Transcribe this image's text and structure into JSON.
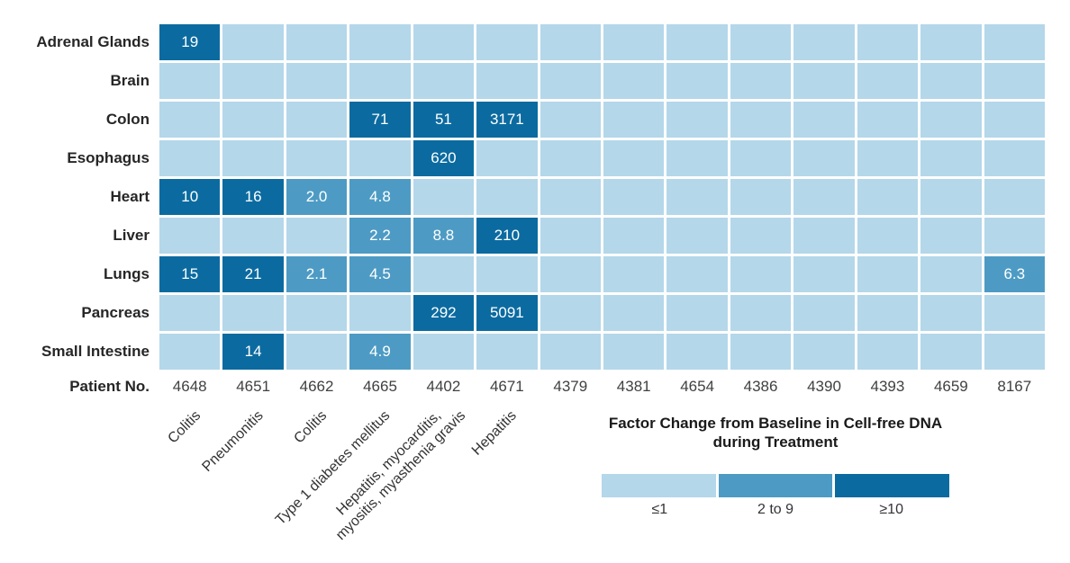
{
  "chart_data": {
    "type": "heatmap",
    "title": "Factor Change from Baseline in Cell-free DNA during Treatment",
    "rows": [
      "Adrenal Glands",
      "Brain",
      "Colon",
      "Esophagus",
      "Heart",
      "Liver",
      "Lungs",
      "Pancreas",
      "Small Intestine"
    ],
    "column_axis_label": "Patient No.",
    "columns": [
      "4648",
      "4651",
      "4662",
      "4665",
      "4402",
      "4671",
      "4379",
      "4381",
      "4654",
      "4386",
      "4390",
      "4393",
      "4659",
      "8167"
    ],
    "diagnoses": [
      {
        "patient": "4648",
        "lines": [
          "Colitis"
        ]
      },
      {
        "patient": "4651",
        "lines": [
          "Pneumonitis"
        ]
      },
      {
        "patient": "4662",
        "lines": [
          "Colitis"
        ]
      },
      {
        "patient": "4665",
        "lines": [
          "Type 1 diabetes mellitus"
        ]
      },
      {
        "patient": "4402",
        "lines": [
          "Hepatitis, myocarditis,",
          "myositis, myasthenia gravis"
        ]
      },
      {
        "patient": "4671",
        "lines": [
          "Hepatitis"
        ]
      }
    ],
    "default_bin": "le1",
    "cells": [
      {
        "row": "Adrenal Glands",
        "patient": "4648",
        "value": "19",
        "bin": "ge10"
      },
      {
        "row": "Colon",
        "patient": "4665",
        "value": "71",
        "bin": "ge10"
      },
      {
        "row": "Colon",
        "patient": "4402",
        "value": "51",
        "bin": "ge10"
      },
      {
        "row": "Colon",
        "patient": "4671",
        "value": "3171",
        "bin": "ge10"
      },
      {
        "row": "Esophagus",
        "patient": "4402",
        "value": "620",
        "bin": "ge10"
      },
      {
        "row": "Heart",
        "patient": "4648",
        "value": "10",
        "bin": "ge10"
      },
      {
        "row": "Heart",
        "patient": "4651",
        "value": "16",
        "bin": "ge10"
      },
      {
        "row": "Heart",
        "patient": "4662",
        "value": "2.0",
        "bin": "2to9"
      },
      {
        "row": "Heart",
        "patient": "4665",
        "value": "4.8",
        "bin": "2to9"
      },
      {
        "row": "Liver",
        "patient": "4665",
        "value": "2.2",
        "bin": "2to9"
      },
      {
        "row": "Liver",
        "patient": "4402",
        "value": "8.8",
        "bin": "2to9"
      },
      {
        "row": "Liver",
        "patient": "4671",
        "value": "210",
        "bin": "ge10"
      },
      {
        "row": "Lungs",
        "patient": "4648",
        "value": "15",
        "bin": "ge10"
      },
      {
        "row": "Lungs",
        "patient": "4651",
        "value": "21",
        "bin": "ge10"
      },
      {
        "row": "Lungs",
        "patient": "4662",
        "value": "2.1",
        "bin": "2to9"
      },
      {
        "row": "Lungs",
        "patient": "4665",
        "value": "4.5",
        "bin": "2to9"
      },
      {
        "row": "Lungs",
        "patient": "8167",
        "value": "6.3",
        "bin": "2to9"
      },
      {
        "row": "Pancreas",
        "patient": "4402",
        "value": "292",
        "bin": "ge10"
      },
      {
        "row": "Pancreas",
        "patient": "4671",
        "value": "5091",
        "bin": "ge10"
      },
      {
        "row": "Small Intestine",
        "patient": "4651",
        "value": "14",
        "bin": "ge10"
      },
      {
        "row": "Small Intestine",
        "patient": "4665",
        "value": "4.9",
        "bin": "2to9"
      }
    ],
    "legend": {
      "title_line1": "Factor Change from Baseline in Cell-free DNA",
      "title_line2": "during Treatment",
      "bins": [
        {
          "key": "le1",
          "label": "≤1",
          "color": "#b4d7ea"
        },
        {
          "key": "2to9",
          "label": "2 to 9",
          "color": "#4d9bc4"
        },
        {
          "key": "ge10",
          "label": "≥10",
          "color": "#0b6ba0"
        }
      ]
    },
    "colors": {
      "le1": "#b4d7ea",
      "2to9": "#4d9bc4",
      "ge10": "#0b6ba0",
      "grid_gap": "#ffffff"
    }
  }
}
